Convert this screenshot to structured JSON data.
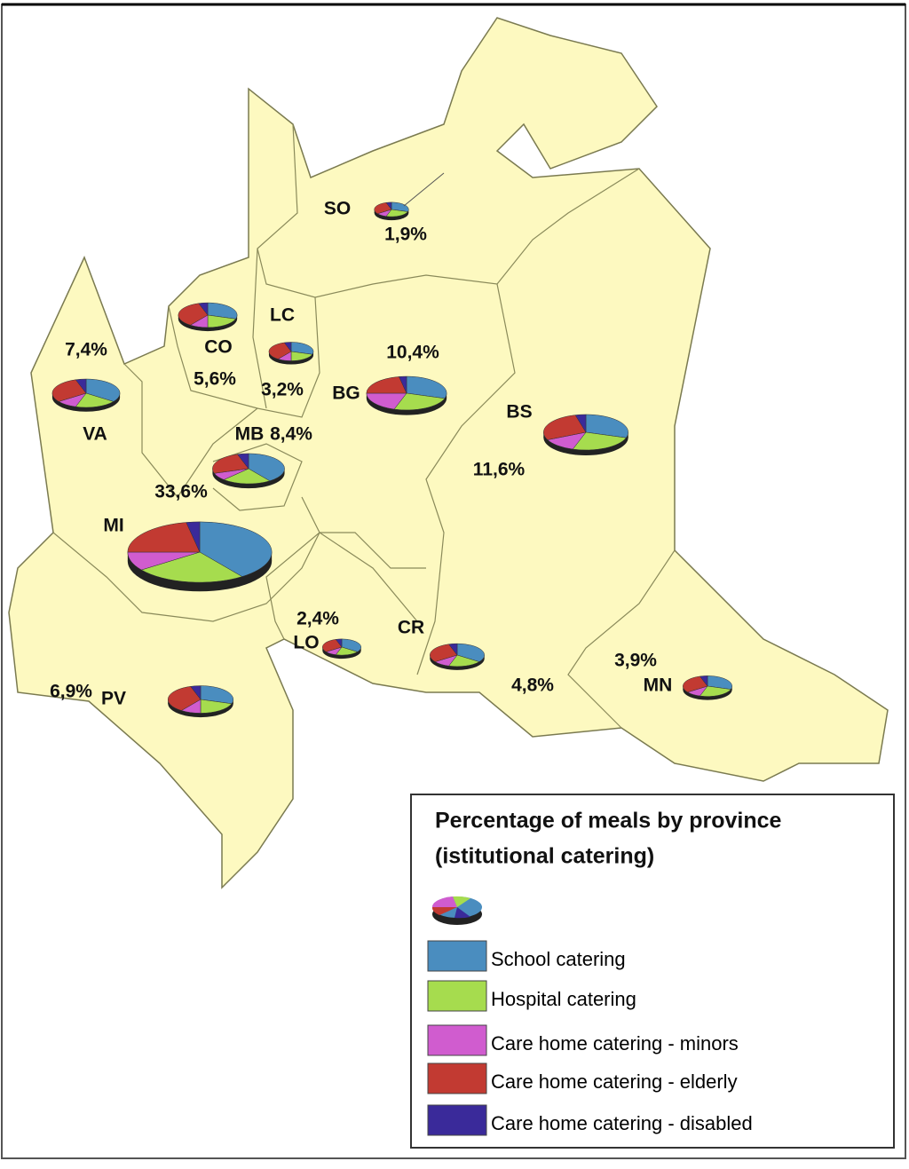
{
  "map": {
    "provinces": [
      {
        "code": "SO",
        "share": 1.9,
        "share_label": "1,9%",
        "mix": [
          30,
          25,
          10,
          30,
          5
        ]
      },
      {
        "code": "CO",
        "share": 5.6,
        "share_label": "5,6%",
        "mix": [
          30,
          20,
          10,
          35,
          5
        ]
      },
      {
        "code": "LC",
        "share": 3.2,
        "share_label": "3,2%",
        "mix": [
          30,
          20,
          10,
          35,
          5
        ]
      },
      {
        "code": "VA",
        "share": 7.4,
        "share_label": "7,4%",
        "mix": [
          35,
          20,
          10,
          30,
          5
        ]
      },
      {
        "code": "BG",
        "share": 10.4,
        "share_label": "10,4%",
        "mix": [
          30,
          25,
          20,
          22,
          3
        ]
      },
      {
        "code": "BS",
        "share": 11.6,
        "share_label": "11,6%",
        "mix": [
          30,
          25,
          13,
          28,
          4
        ]
      },
      {
        "code": "MB",
        "share": 8.4,
        "share_label": "8,4%",
        "mix": [
          40,
          22,
          8,
          25,
          5
        ]
      },
      {
        "code": "MI",
        "share": 33.6,
        "share_label": "33,6%",
        "mix": [
          40,
          25,
          10,
          22,
          3
        ]
      },
      {
        "code": "LO",
        "share": 2.4,
        "share_label": "2,4%",
        "mix": [
          35,
          20,
          10,
          30,
          5
        ]
      },
      {
        "code": "CR",
        "share": 4.8,
        "share_label": "4,8%",
        "mix": [
          35,
          20,
          10,
          30,
          5
        ]
      },
      {
        "code": "MN",
        "share": 3.9,
        "share_label": "3,9%",
        "mix": [
          30,
          25,
          10,
          30,
          5
        ]
      },
      {
        "code": "PV",
        "share": 6.9,
        "share_label": "6,9%",
        "mix": [
          30,
          20,
          10,
          35,
          5
        ]
      }
    ]
  },
  "legend": {
    "title": "Percentage of meals by province",
    "subtitle": "(istitutional catering)",
    "items": [
      {
        "label": "School catering",
        "color": "#4a8dbf"
      },
      {
        "label": "Hospital catering",
        "color": "#a6dc4e"
      },
      {
        "label": "Care home catering - minors",
        "color": "#d05ccf"
      },
      {
        "label": "Care home catering - elderly",
        "color": "#c23a32"
      },
      {
        "label": "Care home catering - disabled",
        "color": "#3a2a9a"
      }
    ]
  }
}
